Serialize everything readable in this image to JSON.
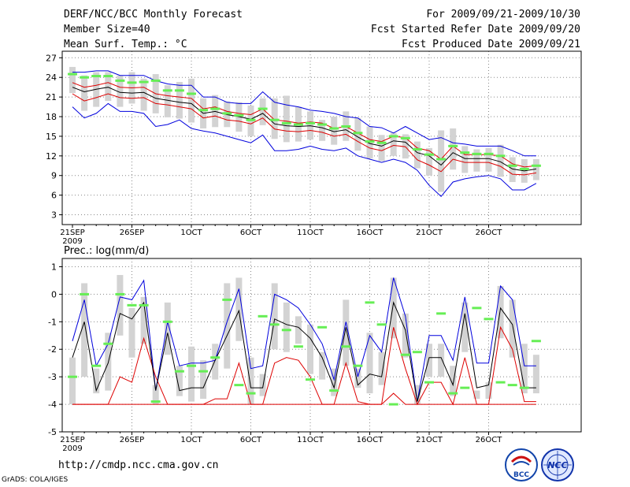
{
  "header": {
    "title": "DERF/NCC/BCC Monthly Forecast",
    "member_size": "Member Size=40",
    "variable": "Mean Surf. Temp.: °C",
    "period": "For 2009/09/21-2009/10/30",
    "start_date": "Fcst Started Refer Date 2009/09/20",
    "produced_date": "Fcst Produced Date 2009/09/21"
  },
  "footer": {
    "url": "http://cmdp.ncc.cma.gov.cn",
    "credit": "GrADS: COLA/IGES",
    "logo_bcc_text": "BCC",
    "logo_ncc_text": "NCC"
  },
  "colors": {
    "box": "#d3d3d3",
    "green": "#66ee55",
    "mean": "#000000",
    "upper": "#0000dd",
    "lower": "#dd0000",
    "grid": "#888888"
  },
  "chart_data": [
    {
      "type": "line",
      "title": "Mean Surf. Temp.: °C",
      "x_start": "2009-09-21",
      "days": 40,
      "x_ticks": [
        {
          "day": 0,
          "label": "21SEP",
          "sub": "2009"
        },
        {
          "day": 5,
          "label": "26SEP"
        },
        {
          "day": 10,
          "label": "1OCT"
        },
        {
          "day": 15,
          "label": "6OCT"
        },
        {
          "day": 20,
          "label": "11OCT"
        },
        {
          "day": 25,
          "label": "16OCT"
        },
        {
          "day": 30,
          "label": "21OCT"
        },
        {
          "day": 35,
          "label": "26OCT"
        }
      ],
      "ylim": [
        1.5,
        28
      ],
      "y_ticks": [
        3,
        6,
        9,
        12,
        15,
        18,
        21,
        24,
        27
      ],
      "series": [
        {
          "name": "upper",
          "values": [
            24.8,
            24.8,
            25.0,
            25.0,
            24.3,
            24.3,
            24.3,
            23.5,
            23.0,
            22.8,
            22.8,
            21.0,
            21.0,
            20.2,
            20.0,
            20.0,
            21.8,
            20.2,
            19.8,
            19.5,
            19.0,
            18.8,
            18.5,
            18.0,
            17.8,
            16.5,
            16.3,
            15.5,
            16.5,
            15.5,
            14.5,
            14.8,
            14.0,
            13.8,
            13.5,
            13.5,
            13.5,
            12.8,
            12.0,
            12.0
          ]
        },
        {
          "name": "box_high",
          "values": [
            25.6,
            24.3,
            24.8,
            24.8,
            24.3,
            24.8,
            23.8,
            24.5,
            22.8,
            23.3,
            23.8,
            20.8,
            21.3,
            20.3,
            20.2,
            19.7,
            20.8,
            20.8,
            21.2,
            19.5,
            18.8,
            17.5,
            18.0,
            18.8,
            17.8,
            16.5,
            15.2,
            15.5,
            15.3,
            14.2,
            13.2,
            15.9,
            16.2,
            13.5,
            13.0,
            13.2,
            13.7,
            11.8,
            11.5,
            11.5
          ]
        },
        {
          "name": "green",
          "values": [
            24.5,
            24.0,
            24.2,
            24.2,
            23.5,
            23.2,
            23.3,
            23.5,
            22.0,
            22.0,
            21.5,
            19.0,
            19.2,
            18.5,
            18.2,
            17.5,
            19.2,
            17.5,
            17.0,
            16.8,
            17.0,
            16.8,
            16.2,
            16.5,
            15.5,
            14.2,
            14.0,
            15.0,
            14.7,
            13.0,
            12.2,
            11.5,
            13.5,
            12.5,
            12.3,
            12.3,
            12.0,
            10.5,
            10.0,
            10.5
          ]
        },
        {
          "name": "upper_mid",
          "values": [
            23.2,
            22.5,
            22.8,
            23.2,
            22.5,
            22.4,
            22.5,
            21.5,
            21.2,
            21.0,
            20.8,
            19.2,
            19.5,
            18.8,
            18.5,
            18.3,
            19.2,
            17.5,
            17.3,
            17.0,
            17.2,
            17.0,
            16.2,
            16.5,
            15.5,
            14.5,
            14.2,
            15.0,
            14.8,
            13.2,
            12.8,
            11.5,
            13.5,
            12.2,
            12.2,
            12.2,
            12.0,
            10.8,
            10.3,
            10.5
          ]
        },
        {
          "name": "mean",
          "values": [
            22.5,
            21.8,
            22.2,
            22.5,
            21.7,
            21.6,
            21.7,
            20.8,
            20.5,
            20.2,
            20.0,
            18.5,
            18.8,
            18.3,
            18.0,
            17.6,
            18.5,
            16.9,
            16.6,
            16.5,
            16.6,
            16.3,
            15.7,
            16.0,
            14.9,
            13.9,
            13.5,
            14.3,
            14.1,
            12.5,
            12.0,
            10.6,
            12.5,
            11.6,
            11.6,
            11.6,
            11.1,
            10.0,
            9.7,
            10.0
          ]
        },
        {
          "name": "lower",
          "values": [
            21.5,
            20.4,
            20.9,
            21.5,
            20.9,
            20.8,
            20.9,
            20.0,
            19.8,
            19.5,
            19.2,
            17.8,
            18.1,
            17.5,
            17.3,
            16.9,
            17.8,
            16.1,
            15.8,
            15.7,
            15.9,
            15.6,
            15.0,
            15.3,
            14.2,
            13.2,
            12.8,
            13.6,
            13.4,
            11.4,
            10.6,
            9.6,
            11.5,
            11.0,
            11.0,
            11.0,
            10.4,
            9.2,
            9.1,
            9.4
          ]
        },
        {
          "name": "box_low",
          "values": [
            21.6,
            18.9,
            19.5,
            20.4,
            19.5,
            20.0,
            18.9,
            18.5,
            17.9,
            17.7,
            17.1,
            16.2,
            16.4,
            16.4,
            15.7,
            15.0,
            16.7,
            14.6,
            14.1,
            14.2,
            14.5,
            14.3,
            13.7,
            14.3,
            12.8,
            11.6,
            11.2,
            12.0,
            11.6,
            10.1,
            9.0,
            6.5,
            9.9,
            9.4,
            9.6,
            9.6,
            8.8,
            8.0,
            7.9,
            8.3
          ]
        },
        {
          "name": "lowest",
          "values": [
            19.5,
            17.8,
            18.5,
            20.0,
            18.8,
            18.8,
            18.5,
            16.5,
            16.8,
            17.5,
            16.2,
            15.8,
            15.5,
            15.0,
            14.5,
            14.0,
            15.2,
            12.8,
            12.8,
            13.0,
            13.5,
            13.0,
            12.8,
            13.2,
            12.0,
            11.5,
            11.0,
            11.5,
            11.0,
            9.8,
            7.5,
            5.8,
            8.0,
            8.5,
            8.8,
            9.0,
            8.5,
            6.8,
            6.8,
            7.8
          ]
        }
      ]
    },
    {
      "type": "line",
      "title": "Prec.: log(mm/d)",
      "x_start": "2009-09-21",
      "days": 40,
      "x_ticks": [
        {
          "day": 0,
          "label": "21SEP",
          "sub": "2009"
        },
        {
          "day": 5,
          "label": "26SEP"
        },
        {
          "day": 10,
          "label": "1OCT"
        },
        {
          "day": 15,
          "label": "6OCT"
        },
        {
          "day": 20,
          "label": "11OCT"
        },
        {
          "day": 25,
          "label": "16OCT"
        },
        {
          "day": 30,
          "label": "21OCT"
        },
        {
          "day": 35,
          "label": "26OCT"
        }
      ],
      "ylim": [
        -5,
        1.3
      ],
      "y_ticks": [
        -5,
        -4,
        -3,
        -2,
        -1,
        0,
        1
      ],
      "series": [
        {
          "name": "upper",
          "values": [
            -1.7,
            -0.2,
            -2.6,
            -1.8,
            -0.1,
            -0.2,
            0.5,
            -3.5,
            -1.0,
            -2.6,
            -2.5,
            -2.5,
            -2.4,
            -1.0,
            0.2,
            -2.7,
            -2.6,
            0.0,
            -0.2,
            -0.5,
            -1.1,
            -1.8,
            -3.1,
            -1.0,
            -3.0,
            -1.5,
            -2.1,
            0.6,
            -0.8,
            -3.9,
            -1.5,
            -1.5,
            -2.4,
            -0.1,
            -2.5,
            -2.5,
            0.3,
            -0.2,
            -2.6,
            -2.6
          ]
        },
        {
          "name": "box_high",
          "values": [
            -2.3,
            0.4,
            -2.7,
            -1.4,
            0.7,
            -0.5,
            -0.1,
            -3.3,
            -0.3,
            -2.6,
            -1.9,
            -2.4,
            -1.8,
            0.4,
            0.6,
            -2.3,
            -2.9,
            0.4,
            -0.3,
            -0.8,
            -1.1,
            -2.1,
            -2.7,
            -0.2,
            -2.7,
            -1.4,
            -2.1,
            0.6,
            -0.7,
            -3.3,
            -1.8,
            -1.8,
            -2.6,
            -0.3,
            -3.5,
            -3.2,
            0.3,
            -0.2,
            -1.8,
            -2.2
          ]
        },
        {
          "name": "green",
          "values": [
            -3.0,
            0.0,
            -2.6,
            -1.8,
            0.0,
            -0.4,
            -0.4,
            -3.9,
            -1.0,
            -2.8,
            -2.6,
            -2.8,
            -2.3,
            -0.2,
            -3.3,
            -3.6,
            -0.8,
            -1.1,
            -1.3,
            -1.9,
            -3.1,
            -1.2,
            -3.5,
            -1.9,
            -2.6,
            -0.3,
            -1.1,
            -4.0,
            -2.2,
            -2.1,
            -3.2,
            -0.7,
            -3.6,
            -3.4,
            -0.5,
            -0.9,
            -3.2,
            -3.3,
            -3.4,
            -1.7
          ]
        },
        {
          "name": "mean",
          "values": [
            -2.3,
            -1.0,
            -3.5,
            -2.5,
            -0.7,
            -0.9,
            -0.3,
            -3.5,
            -1.4,
            -3.5,
            -3.4,
            -3.4,
            -2.4,
            -1.5,
            -0.6,
            -3.4,
            -3.4,
            -0.9,
            -1.1,
            -1.2,
            -1.6,
            -2.3,
            -3.4,
            -1.2,
            -3.3,
            -2.9,
            -3.0,
            -0.3,
            -1.3,
            -3.9,
            -2.3,
            -2.3,
            -3.3,
            -0.7,
            -3.4,
            -3.3,
            -0.5,
            -1.1,
            -3.4,
            -3.4
          ]
        },
        {
          "name": "box_low",
          "values": [
            -4.0,
            -3.0,
            -3.6,
            -3.5,
            -1.5,
            -2.3,
            -1.8,
            -4.0,
            -2.2,
            -3.7,
            -3.9,
            -3.8,
            -3.1,
            -2.7,
            -1.7,
            -4.0,
            -3.7,
            -2.0,
            -2.1,
            -1.8,
            -2.9,
            -3.1,
            -3.7,
            -2.6,
            -3.4,
            -3.6,
            -3.3,
            -1.6,
            -2.3,
            -4.0,
            -3.0,
            -3.0,
            -3.7,
            -2.1,
            -3.8,
            -3.8,
            -1.6,
            -2.3,
            -3.6,
            -3.6
          ]
        },
        {
          "name": "lower",
          "values": [
            -4.0,
            -4.0,
            -4.0,
            -4.0,
            -3.0,
            -3.2,
            -1.6,
            -3.0,
            -4.0,
            -4.0,
            -4.0,
            -4.0,
            -3.8,
            -3.8,
            -2.5,
            -4.0,
            -4.0,
            -2.5,
            -2.3,
            -2.4,
            -3.0,
            -4.0,
            -4.0,
            -2.5,
            -3.9,
            -4.0,
            -4.0,
            -1.2,
            -2.7,
            -4.0,
            -3.2,
            -3.2,
            -4.0,
            -2.3,
            -4.0,
            -4.0,
            -1.2,
            -2.0,
            -3.9,
            -3.9
          ]
        },
        {
          "name": "lowest",
          "values": [
            -4.0,
            -4.0,
            -4.0,
            -4.0,
            -4.0,
            -4.0,
            -4.0,
            -4.0,
            -4.0,
            -4.0,
            -4.0,
            -4.0,
            -4.0,
            -4.0,
            -4.0,
            -4.0,
            -4.0,
            -4.0,
            -4.0,
            -4.0,
            -4.0,
            -4.0,
            -4.0,
            -4.0,
            -4.0,
            -4.0,
            -4.0,
            -3.6,
            -4.0,
            -4.0,
            -4.0,
            -4.0,
            -4.0,
            -4.0,
            -4.0,
            -4.0,
            -4.0,
            -4.0,
            -4.0,
            -4.0
          ]
        }
      ]
    }
  ]
}
